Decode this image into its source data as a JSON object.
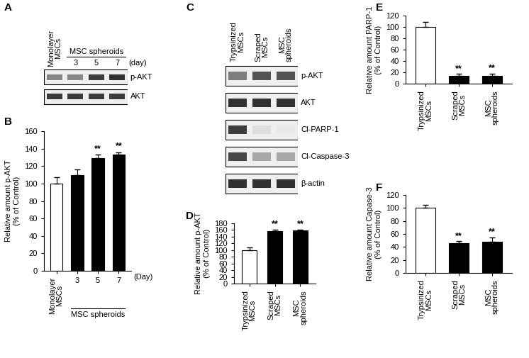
{
  "blots": [
    {
      "panel_label": "A",
      "lanes": [
        "Monolayer\nMSCs",
        "3",
        "5",
        "7"
      ],
      "group_label": "MSC spheroids",
      "unit_label": "(day)",
      "rows": [
        {
          "name": "p-AKT",
          "bands": [
            0.55,
            0.55,
            0.9,
            0.95
          ]
        },
        {
          "name": "AKT",
          "bands": [
            0.9,
            0.9,
            0.9,
            0.9
          ]
        }
      ]
    },
    {
      "panel_label": "C",
      "lanes": [
        "Trypsinized\nMSCs",
        "Scraped\nMSCs",
        "MSC\nspheroids"
      ],
      "rows": [
        {
          "name": "p-AKT",
          "bands": [
            0.6,
            0.8,
            0.8
          ]
        },
        {
          "name": "AKT",
          "bands": [
            0.95,
            0.95,
            0.95
          ]
        },
        {
          "name": "Cl-PARP-1",
          "bands": [
            0.9,
            0.15,
            0.1
          ]
        },
        {
          "name": "Cl-Caspase-3",
          "bands": [
            0.85,
            0.4,
            0.4
          ]
        },
        {
          "name": "β-actin",
          "bands": [
            0.95,
            0.95,
            0.95
          ]
        }
      ]
    }
  ],
  "chart_data": [
    {
      "panel_label": "B",
      "type": "bar",
      "categories": [
        "Monolayer\nMSCs",
        "3",
        "5",
        "7"
      ],
      "values": [
        100,
        110,
        129,
        133
      ],
      "errors": [
        7,
        6,
        4,
        3
      ],
      "significance": [
        null,
        null,
        "**",
        "**"
      ],
      "colors": [
        "#ffffff",
        "#000000",
        "#000000",
        "#000000"
      ],
      "ylabel": "Relative amount p-AKT\n(% of Control)",
      "xlabel": "(Day)",
      "group_label": "MSC spheroids",
      "ylim": [
        0,
        160
      ],
      "yticks": [
        0,
        20,
        40,
        60,
        80,
        100,
        120,
        140,
        160
      ]
    },
    {
      "panel_label": "D",
      "type": "bar",
      "categories": [
        "Trypsinized\nMSCs",
        "Scraped\nMSCs",
        "MSC\nspheroids"
      ],
      "values": [
        100,
        156,
        158
      ],
      "errors": [
        8,
        6,
        4
      ],
      "significance": [
        null,
        "**",
        "**"
      ],
      "colors": [
        "#ffffff",
        "#000000",
        "#000000"
      ],
      "ylabel": "Relative amount p-AKT\n(% of Control)",
      "ylim": [
        0,
        180
      ],
      "yticks": [
        0,
        20,
        40,
        60,
        80,
        100,
        120,
        140,
        160,
        180
      ]
    },
    {
      "panel_label": "E",
      "type": "bar",
      "categories": [
        "Trypsinized\nMSCs",
        "Scraped\nMSCs",
        "MSC\nspheroids"
      ],
      "values": [
        100,
        14,
        14
      ],
      "errors": [
        9,
        3,
        4
      ],
      "significance": [
        null,
        "**",
        "**"
      ],
      "colors": [
        "#ffffff",
        "#000000",
        "#000000"
      ],
      "ylabel": "Relative amount PARP-1\n(% of Control)",
      "ylim": [
        0,
        120
      ],
      "yticks": [
        0,
        20,
        40,
        60,
        80,
        100,
        120
      ]
    },
    {
      "panel_label": "F",
      "type": "bar",
      "categories": [
        "Trypsinized\nMSCs",
        "Scraped\nMSCs",
        "MSC\nspheroids"
      ],
      "values": [
        100,
        46,
        48
      ],
      "errors": [
        5,
        3,
        7
      ],
      "significance": [
        null,
        "**",
        "**"
      ],
      "colors": [
        "#ffffff",
        "#000000",
        "#000000"
      ],
      "ylabel": "Relative amount Capase-3\n(% of Control)",
      "ylim": [
        0,
        120
      ],
      "yticks": [
        0,
        20,
        40,
        60,
        80,
        100,
        120
      ]
    }
  ]
}
